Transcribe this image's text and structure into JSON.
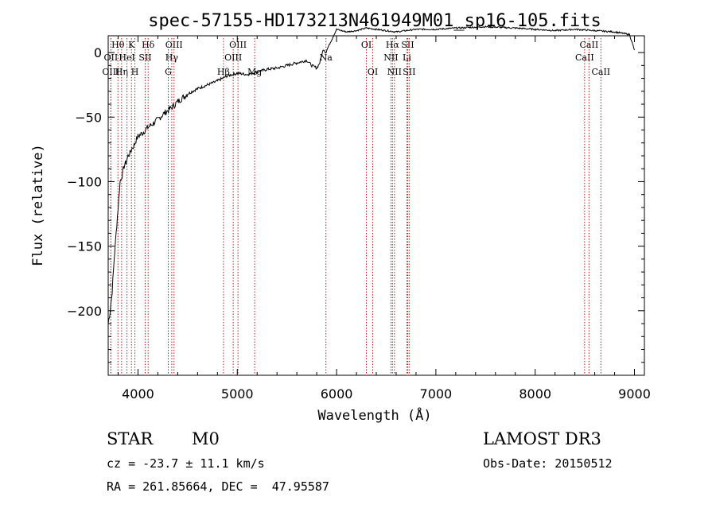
{
  "footer": {
    "object_class": "STAR",
    "subclass": "M0",
    "survey": "LAMOST DR3",
    "cz": "cz = -23.7 ± 11.1 km/s",
    "obs_date": "Obs-Date: 20150512",
    "coords": "RA = 261.85664, DEC =  47.95587"
  },
  "chart_data": {
    "type": "line",
    "title": "spec-57155-HD173213N461949M01_sp16-105.fits",
    "xlabel": "Wavelength (Å)",
    "ylabel": "Flux (relative)",
    "xlim": [
      3700,
      9100
    ],
    "ylim": [
      -250,
      13
    ],
    "xticks": [
      4000,
      5000,
      6000,
      7000,
      8000,
      9000
    ],
    "yticks": [
      -200,
      -150,
      -100,
      -50,
      0
    ],
    "line_color": "#000000",
    "marker_color": "#b22222",
    "series": [
      {
        "x": [
          3700,
          3720,
          3740,
          3760,
          3780,
          3800,
          3820,
          3840,
          3860,
          3880,
          3900,
          3920,
          3940,
          3960,
          3980,
          4000,
          4050,
          4100,
          4150,
          4200,
          4250,
          4300,
          4350,
          4400,
          4450,
          4500,
          4600,
          4700,
          4800,
          4900,
          5000,
          5100,
          5200,
          5300,
          5400,
          5500,
          5600,
          5700,
          5750,
          5800,
          5830,
          5850,
          5870,
          5890,
          5920,
          6000,
          6100,
          6200,
          6300,
          6400,
          6500,
          6600,
          6700,
          6800,
          7000,
          7200,
          7500,
          7800,
          8000,
          8200,
          8400,
          8600,
          8800,
          8950,
          9000
        ],
        "y": [
          -210,
          -200,
          -185,
          -160,
          -140,
          -120,
          -100,
          -95,
          -88,
          -85,
          -80,
          -78,
          -74,
          -72,
          -68,
          -65,
          -62,
          -58,
          -55,
          -52,
          -48,
          -45,
          -42,
          -38,
          -35,
          -32,
          -28,
          -25,
          -22,
          -18,
          -16,
          -17,
          -15,
          -13,
          -12,
          -10,
          -8,
          -6,
          -10,
          -12,
          -8,
          -2,
          3,
          0,
          5,
          18,
          16,
          17,
          19,
          18,
          17,
          16,
          17,
          18,
          18,
          19,
          20,
          19,
          18,
          17,
          18,
          17,
          16,
          14,
          2
        ]
      }
    ],
    "lines": [
      {
        "label": "Hθ",
        "x": 3798,
        "row": 1
      },
      {
        "label": "OII",
        "x": 3727,
        "row": 2
      },
      {
        "label": "OIII",
        "x": 3727,
        "row": 3
      },
      {
        "label": "Hη",
        "x": 3835,
        "row": 3
      },
      {
        "label": "HeI",
        "x": 3889,
        "row": 2
      },
      {
        "label": "K",
        "x": 3934,
        "row": 1
      },
      {
        "label": "H",
        "x": 3969,
        "row": 3
      },
      {
        "label": "SII",
        "x": 4072,
        "row": 2
      },
      {
        "label": "Hδ",
        "x": 4102,
        "row": 1
      },
      {
        "label": "OIII",
        "x": 4363,
        "row": 1
      },
      {
        "label": "Hγ",
        "x": 4340,
        "row": 2
      },
      {
        "label": "G",
        "x": 4305,
        "row": 3
      },
      {
        "label": "Hβ",
        "x": 4861,
        "row": 3
      },
      {
        "label": "OIII",
        "x": 5007,
        "row": 1
      },
      {
        "label": "OIII",
        "x": 4959,
        "row": 2
      },
      {
        "label": "Mg",
        "x": 5175,
        "row": 3
      },
      {
        "label": "Na",
        "x": 5893,
        "row": 2
      },
      {
        "label": "OI",
        "x": 6300,
        "row": 1
      },
      {
        "label": "OI",
        "x": 6364,
        "row": 3
      },
      {
        "label": "Hα",
        "x": 6563,
        "row": 1
      },
      {
        "label": "NII",
        "x": 6548,
        "row": 2
      },
      {
        "label": "NII",
        "x": 6583,
        "row": 3
      },
      {
        "label": "SII",
        "x": 6716,
        "row": 1
      },
      {
        "label": "Li",
        "x": 6708,
        "row": 2
      },
      {
        "label": "SII",
        "x": 6731,
        "row": 3
      },
      {
        "label": "CaII",
        "x": 8498,
        "row": 2
      },
      {
        "label": "CaII",
        "x": 8542,
        "row": 1
      },
      {
        "label": "CaII",
        "x": 8662,
        "row": 3
      }
    ]
  }
}
